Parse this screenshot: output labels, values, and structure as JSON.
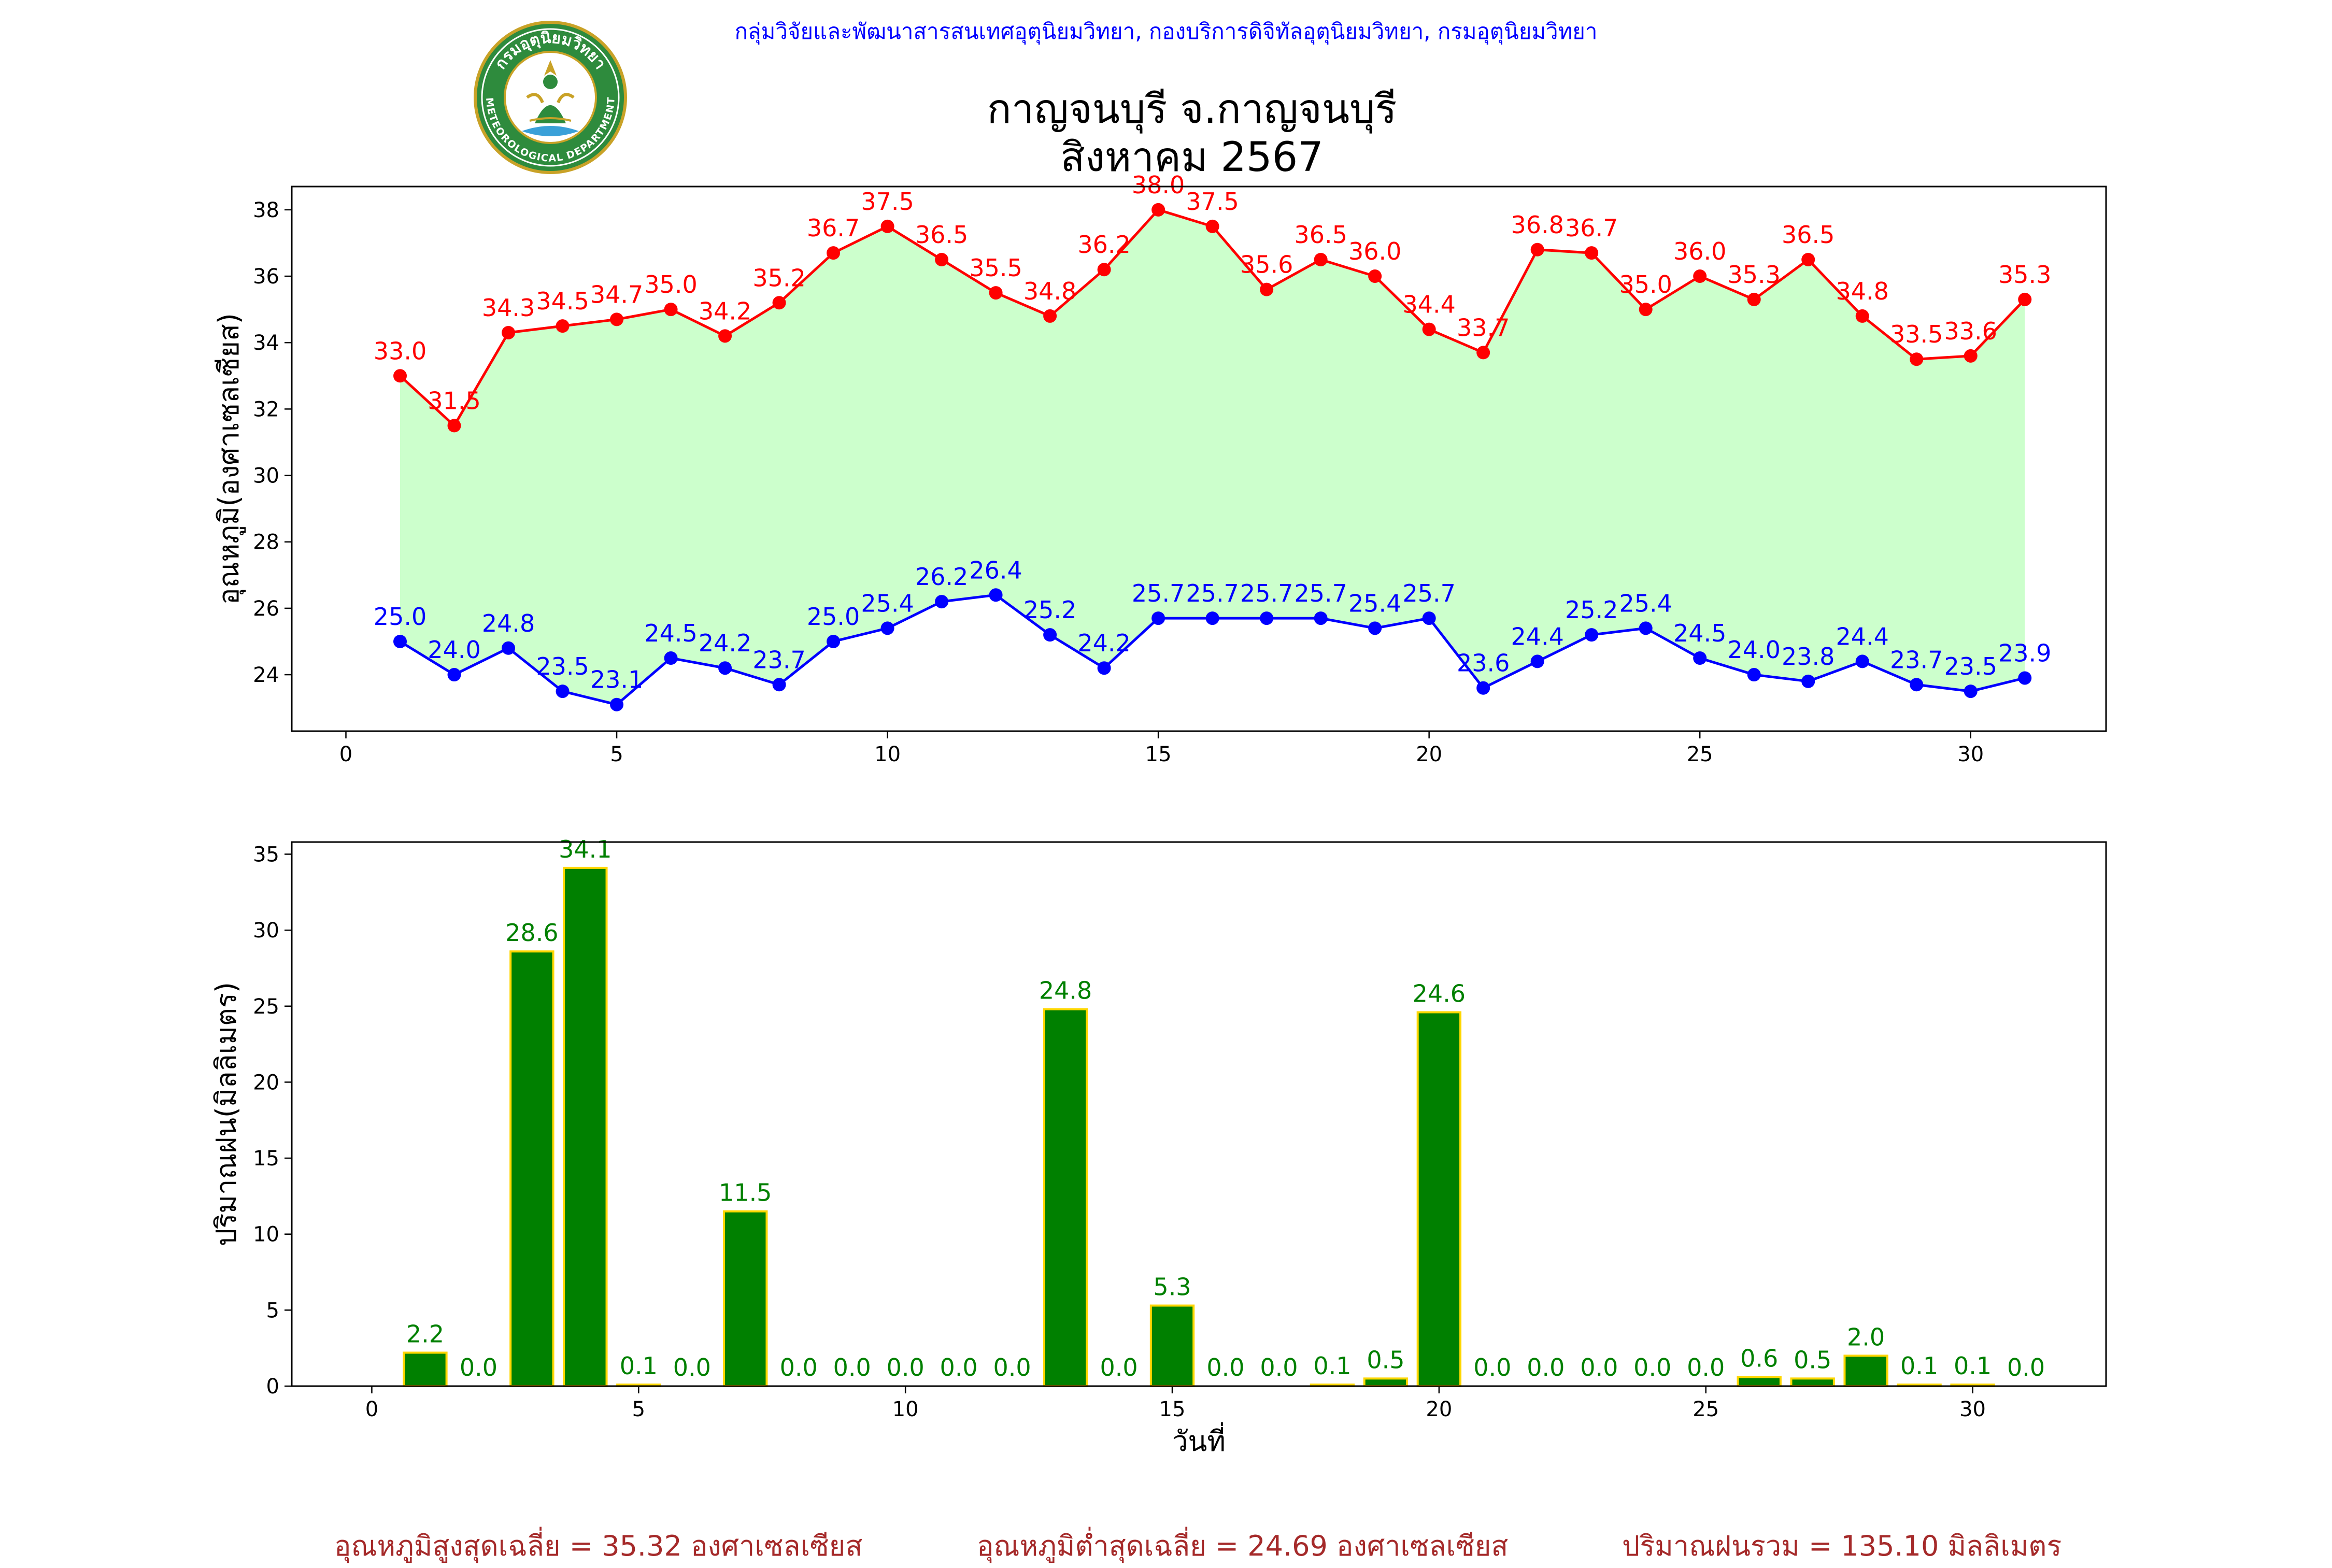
{
  "header": {
    "agency": "กลุ่มวิจัยและพัฒนาสารสนเทศอุตุนิยมวิทยา, กองบริการดิจิทัลอุตุนิยมวิทยา, กรมอุตุนิยมวิทยา",
    "title_line1": "กาญจนบุรี จ.กาญจนบุรี",
    "title_line2": "สิงหาคม 2567",
    "logo": {
      "text_top": "กรมอุตุนิยมวิทยา",
      "text_bottom": "METEOROLOGICAL DEPARTMENT"
    }
  },
  "chart_data": [
    {
      "type": "line",
      "ylabel": "อุณหภูมิ(องศาเซลเซียส)",
      "xlabel": "",
      "xlim": [
        -1,
        32.5
      ],
      "ylim": [
        22.3,
        38.7
      ],
      "xticks": [
        0,
        5,
        10,
        15,
        20,
        25,
        30
      ],
      "yticks": [
        24,
        26,
        28,
        30,
        32,
        34,
        36,
        38
      ],
      "x": [
        1,
        2,
        3,
        4,
        5,
        6,
        7,
        8,
        9,
        10,
        11,
        12,
        13,
        14,
        15,
        16,
        17,
        18,
        19,
        20,
        21,
        22,
        23,
        24,
        25,
        26,
        27,
        28,
        29,
        30,
        31
      ],
      "fill_between": "max-min",
      "fill_color": "#ccffcc",
      "series": [
        {
          "color": "#ff0000",
          "values": [
            33.0,
            31.5,
            34.3,
            34.5,
            34.7,
            35.0,
            34.2,
            35.2,
            36.7,
            37.5,
            36.5,
            35.5,
            34.8,
            36.2,
            38.0,
            37.5,
            35.6,
            36.5,
            36.0,
            34.4,
            33.7,
            36.8,
            36.7,
            35.0,
            36.0,
            35.3,
            36.5,
            34.8,
            33.5,
            33.6,
            35.3
          ]
        },
        {
          "color": "#0000ff",
          "values": [
            25.0,
            24.0,
            24.8,
            23.5,
            23.1,
            24.5,
            24.2,
            23.7,
            25.0,
            25.4,
            26.2,
            26.4,
            25.2,
            24.2,
            25.7,
            25.7,
            25.7,
            25.7,
            25.4,
            25.7,
            23.6,
            24.4,
            25.2,
            25.4,
            24.5,
            24.0,
            23.8,
            24.4,
            23.7,
            23.5,
            23.9
          ]
        }
      ]
    },
    {
      "type": "bar",
      "xlabel": "วันที่",
      "ylabel": "ปริมาณฝน(มิลลิเมตร)",
      "xlim": [
        -1.5,
        32.5
      ],
      "ylim": [
        0,
        35.8
      ],
      "xticks": [
        0,
        5,
        10,
        15,
        20,
        25,
        30
      ],
      "yticks": [
        0,
        5,
        10,
        15,
        20,
        25,
        30,
        35
      ],
      "bar_color": "#008000",
      "bar_edge_color": "#ffd700",
      "label_color": "#008000",
      "categories": [
        1,
        2,
        3,
        4,
        5,
        6,
        7,
        8,
        9,
        10,
        11,
        12,
        13,
        14,
        15,
        16,
        17,
        18,
        19,
        20,
        21,
        22,
        23,
        24,
        25,
        26,
        27,
        28,
        29,
        30,
        31
      ],
      "values": [
        2.2,
        0.0,
        28.6,
        34.1,
        0.1,
        0.0,
        11.5,
        0.0,
        0.0,
        0.0,
        0.0,
        0.0,
        24.8,
        0.0,
        5.3,
        0.0,
        0.0,
        0.1,
        0.5,
        24.6,
        0.0,
        0.0,
        0.0,
        0.0,
        0.0,
        0.6,
        0.5,
        2.0,
        0.1,
        0.1,
        0.0
      ]
    }
  ],
  "summary": {
    "avg_max": "อุณหภูมิสูงสุดเฉลี่ย = 35.32 องศาเซลเซียส",
    "avg_min": "อุณหภูมิต่ำสุดเฉลี่ย = 24.69 องศาเซลเซียส",
    "total_rain": "ปริมาณฝนรวม = 135.10 มิลลิเมตร"
  }
}
